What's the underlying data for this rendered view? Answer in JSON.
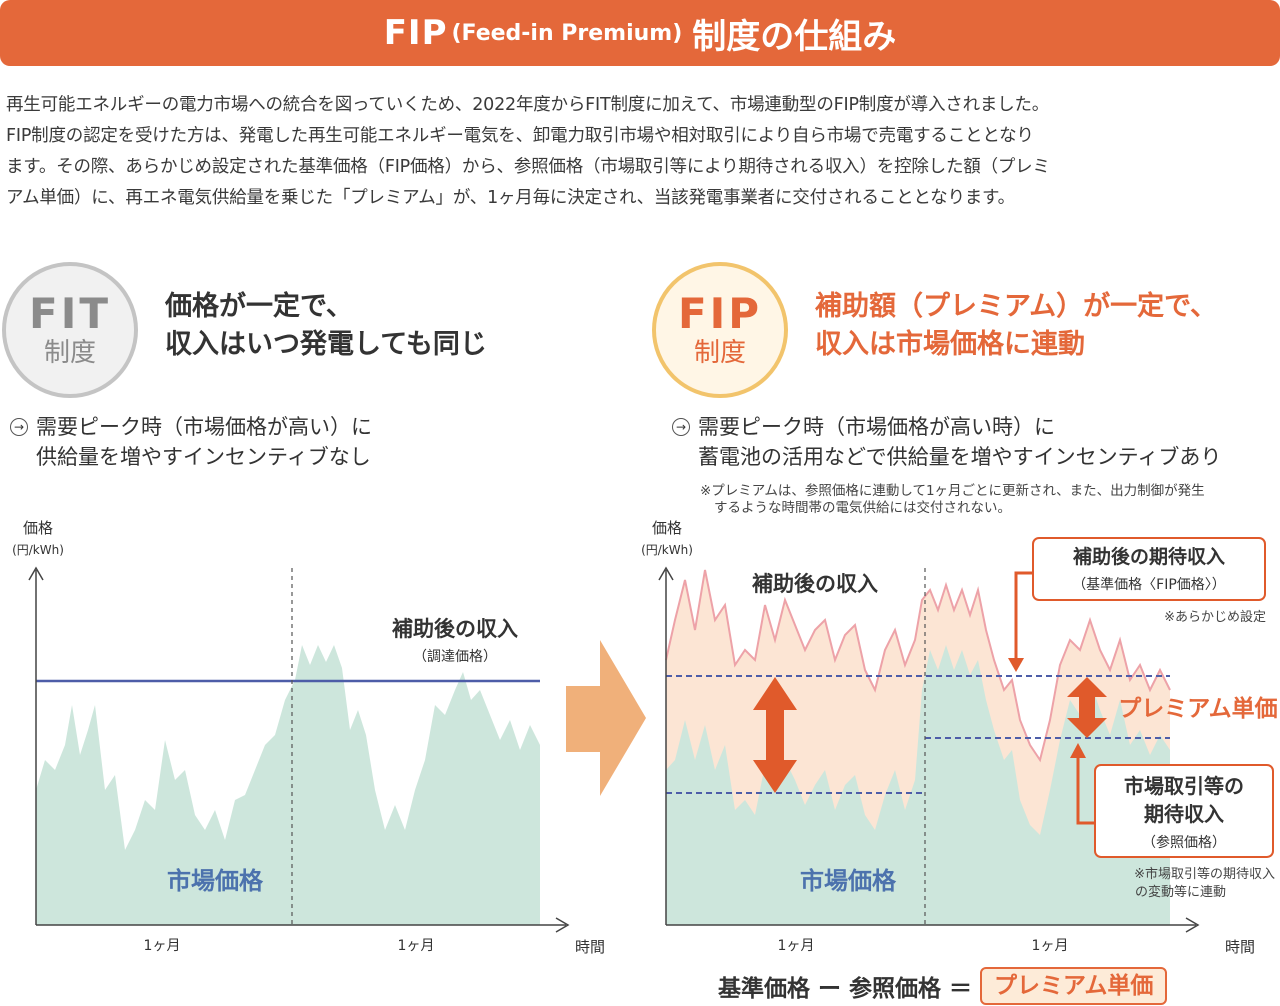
{
  "header": {
    "title_fip": "FIP",
    "title_sub": "(Feed-in Premium)",
    "title_rest": "制度の仕組み"
  },
  "intro": [
    "再生可能エネルギーの電力市場への統合を図っていくため、2022年度からFIT制度に加えて、市場連動型のFIP制度が導入されました。",
    "FIP制度の認定を受けた方は、発電した再生可能エネルギー電気を、卸電力取引市場や相対取引により自ら市場で売電することとなり",
    "ます。その際、あらかじめ設定された基準価格（FIP価格）から、参照価格（市場取引等により期待される収入）を控除した額（プレミ",
    "アム単価）に、再エネ電気供給量を乗じた「プレミアム」が、1ヶ月毎に決定され、当該発電事業者に交付されることとなります。"
  ],
  "fit": {
    "badge_top": "FIT",
    "badge_bottom": "制度",
    "headline": [
      "価格が一定で、",
      "収入はいつ発電しても同じ"
    ],
    "point_icon": "→",
    "point": [
      "需要ピーク時（市場価格が高い）に",
      "供給量を増やすインセンティブなし"
    ],
    "chart": {
      "y_label": "価格",
      "y_unit": "(円/kWh)",
      "x_label": "時間",
      "month_labels": [
        "1ヶ月",
        "1ヶ月"
      ],
      "fixed_label": "補助後の収入",
      "fixed_sub": "（調達価格）",
      "market_label": "市場価格"
    }
  },
  "fip": {
    "badge_top": "FIP",
    "badge_bottom": "制度",
    "headline": [
      "補助額（プレミアム）が一定で、",
      "収入は市場価格に連動"
    ],
    "point_icon": "→",
    "point": [
      "需要ピーク時（市場価格が高い時）に",
      "蓄電池の活用などで供給量を増やすインセンティブあり"
    ],
    "note": [
      "※プレミアムは、参照価格に連動して1ヶ月ごとに更新され、また、出力制御が発生",
      "するような時間帯の電気供給には交付されない。"
    ],
    "chart": {
      "y_label": "価格",
      "y_unit": "(円/kWh)",
      "x_label": "時間",
      "month_labels": [
        "1ヶ月",
        "1ヶ月"
      ],
      "income_label": "補助後の収入",
      "market_label": "市場価格",
      "premium_label": "プレミアム単価",
      "box1": [
        "補助後の期待収入",
        "（基準価格〈FIP価格〉）"
      ],
      "box1_note": "※あらかじめ設定",
      "box2": [
        "市場取引等の",
        "期待収入",
        "（参照価格）"
      ],
      "box2_note": [
        "※市場取引等の期待収入",
        "の変動等に連動"
      ]
    }
  },
  "equation": {
    "text": "基準価格 ー 参照価格 ＝",
    "result": "プレミアム単価"
  },
  "colors": {
    "accent": "#e4683a",
    "market_fill": "#cde6dc",
    "premium_fill": "#fce5d4",
    "premium_line": "#eda2a8",
    "fixed_line": "#4d5da8",
    "market_text": "#4c72ad",
    "arrow": "#f0b07a"
  }
}
